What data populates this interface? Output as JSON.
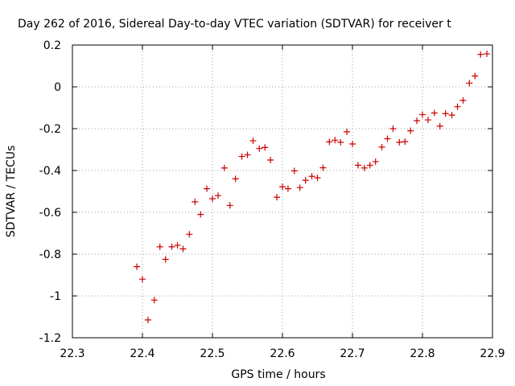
{
  "chart_data": {
    "type": "scatter",
    "title": "Day 262 of 2016, Sidereal Day-to-day VTEC variation (SDTVAR) for receiver t",
    "xlabel": "GPS time / hours",
    "ylabel": "SDTVAR / TECUs",
    "xlim": [
      22.3,
      22.9
    ],
    "ylim": [
      -1.2,
      0.2
    ],
    "xticks": [
      "22.3",
      "22.4",
      "22.5",
      "22.6",
      "22.7",
      "22.8",
      "22.9"
    ],
    "yticks": [
      "0.2",
      "0",
      "-0.2",
      "-0.4",
      "-0.6",
      "-0.8",
      "-1",
      "-1.2"
    ],
    "grid": true,
    "marker": "+",
    "marker_color": "#cc0000",
    "points": [
      [
        22.392,
        -0.86
      ],
      [
        22.4,
        -0.92
      ],
      [
        22.408,
        -1.115
      ],
      [
        22.417,
        -1.02
      ],
      [
        22.425,
        -0.765
      ],
      [
        22.433,
        -0.825
      ],
      [
        22.442,
        -0.765
      ],
      [
        22.45,
        -0.758
      ],
      [
        22.458,
        -0.775
      ],
      [
        22.467,
        -0.705
      ],
      [
        22.475,
        -0.55
      ],
      [
        22.483,
        -0.61
      ],
      [
        22.492,
        -0.487
      ],
      [
        22.5,
        -0.535
      ],
      [
        22.508,
        -0.52
      ],
      [
        22.517,
        -0.388
      ],
      [
        22.525,
        -0.567
      ],
      [
        22.533,
        -0.44
      ],
      [
        22.542,
        -0.333
      ],
      [
        22.55,
        -0.325
      ],
      [
        22.558,
        -0.258
      ],
      [
        22.567,
        -0.295
      ],
      [
        22.575,
        -0.29
      ],
      [
        22.583,
        -0.35
      ],
      [
        22.592,
        -0.528
      ],
      [
        22.6,
        -0.478
      ],
      [
        22.608,
        -0.487
      ],
      [
        22.617,
        -0.402
      ],
      [
        22.625,
        -0.482
      ],
      [
        22.633,
        -0.447
      ],
      [
        22.642,
        -0.428
      ],
      [
        22.65,
        -0.435
      ],
      [
        22.658,
        -0.387
      ],
      [
        22.667,
        -0.263
      ],
      [
        22.675,
        -0.255
      ],
      [
        22.683,
        -0.265
      ],
      [
        22.692,
        -0.215
      ],
      [
        22.7,
        -0.273
      ],
      [
        22.708,
        -0.375
      ],
      [
        22.717,
        -0.388
      ],
      [
        22.725,
        -0.375
      ],
      [
        22.733,
        -0.358
      ],
      [
        22.742,
        -0.288
      ],
      [
        22.75,
        -0.248
      ],
      [
        22.758,
        -0.2
      ],
      [
        22.767,
        -0.265
      ],
      [
        22.775,
        -0.262
      ],
      [
        22.783,
        -0.21
      ],
      [
        22.792,
        -0.162
      ],
      [
        22.8,
        -0.133
      ],
      [
        22.808,
        -0.158
      ],
      [
        22.817,
        -0.125
      ],
      [
        22.825,
        -0.188
      ],
      [
        22.833,
        -0.128
      ],
      [
        22.842,
        -0.135
      ],
      [
        22.85,
        -0.095
      ],
      [
        22.858,
        -0.065
      ],
      [
        22.867,
        0.018
      ],
      [
        22.875,
        0.052
      ],
      [
        22.883,
        0.155
      ],
      [
        22.892,
        0.158
      ]
    ]
  }
}
